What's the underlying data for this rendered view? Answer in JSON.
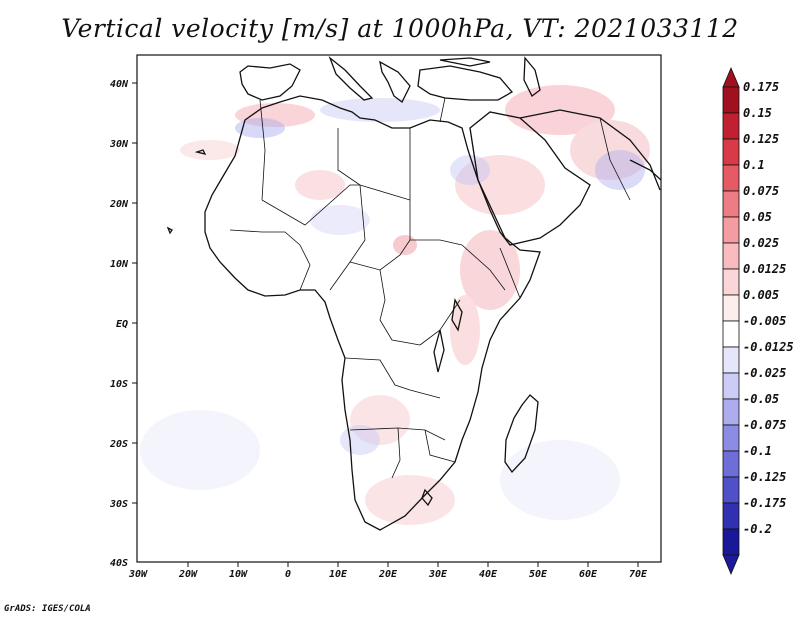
{
  "title": "Vertical velocity [m/s] at 1000hPa, VT: 2021033112",
  "credit": "GrADS: IGES/COLA",
  "map": {
    "lat_ticks": [
      "40N",
      "30N",
      "20N",
      "10N",
      "EQ",
      "10S",
      "20S",
      "30S",
      "40S"
    ],
    "lon_ticks": [
      "30W",
      "20W",
      "10W",
      "0",
      "10E",
      "20E",
      "30E",
      "40E",
      "50E",
      "60E",
      "70E"
    ],
    "extent": {
      "lon_min": -30,
      "lon_max": 75,
      "lat_min": -40,
      "lat_max": 45
    }
  },
  "colorbar": {
    "labels": [
      "0.175",
      "0.15",
      "0.125",
      "0.1",
      "0.075",
      "0.05",
      "0.025",
      "0.0125",
      "0.005",
      "-0.005",
      "-0.0125",
      "-0.025",
      "-0.05",
      "-0.075",
      "-0.1",
      "-0.125",
      "-0.175",
      "-0.2"
    ],
    "colors": [
      "#a01020",
      "#c02030",
      "#d83a48",
      "#e65a64",
      "#ee7c84",
      "#f39ca2",
      "#f8bcc0",
      "#fbd6d8",
      "#fdeeee",
      "#ffffff",
      "#e6e6fb",
      "#ccccf6",
      "#acacee",
      "#8c8ce4",
      "#6e6ed8",
      "#5050c8",
      "#3030b0",
      "#181898"
    ],
    "bottom_arrow_color": "#1a1a9a",
    "top_arrow_color": "#a01020"
  }
}
